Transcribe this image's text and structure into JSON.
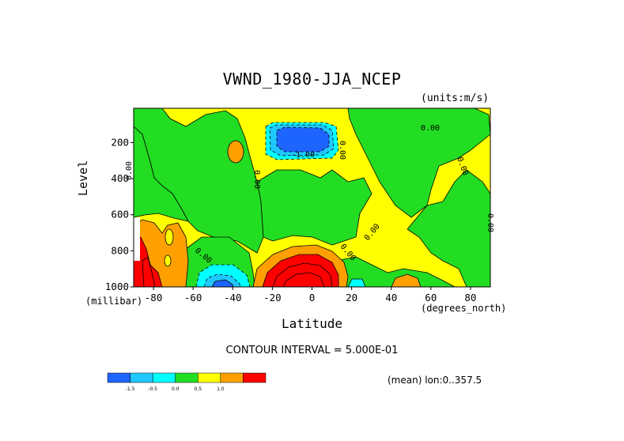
{
  "chart_data": {
    "type": "heatmap",
    "subtype": "filled-contour",
    "title": "VWND_1980-JJA_NCEP",
    "units": "(units:m/s)",
    "xlabel": "Latitude",
    "x_units": "(degrees_north)",
    "ylabel": "Level",
    "y_units": "(millibar)",
    "xlim": [
      -90,
      90
    ],
    "ylim": [
      1000,
      10
    ],
    "x_ticks": [
      -80,
      -60,
      -40,
      -20,
      0,
      20,
      40,
      60,
      80
    ],
    "y_ticks": [
      200,
      400,
      600,
      800,
      1000
    ],
    "contour_interval_text": "CONTOUR INTERVAL = 5.000E-01",
    "mean_text": "(mean) lon:0..357.5",
    "colorbar": {
      "levels": [
        "-1.5",
        "-0.5",
        "0.0",
        "0.5",
        "1.0"
      ],
      "bins": [
        {
          "range": "< -1.5",
          "color": "#1e64ff"
        },
        {
          "range": "-1.5 to -1.0",
          "color": "#1ec8ff"
        },
        {
          "range": "-1.0 to -0.5",
          "color": "#00ffff"
        },
        {
          "range": "-0.5 to 0.0",
          "color": "#22dd22"
        },
        {
          "range": "0.0 to 0.5",
          "color": "#ffff00"
        },
        {
          "range": "0.5 to 1.0",
          "color": "#ffa000"
        },
        {
          "range": "> 1.0",
          "color": "#ff0000"
        }
      ]
    },
    "features": [
      {
        "name": "upper-tropospheric negative core",
        "lat": [
          -25,
          10
        ],
        "level": [
          120,
          280
        ],
        "min": -2.0
      },
      {
        "name": "near-surface positive maximum",
        "lat": [
          -28,
          20
        ],
        "level": [
          780,
          1000
        ],
        "max": 3.0
      },
      {
        "name": "southern surface negative",
        "lat": [
          -62,
          -32
        ],
        "level": [
          820,
          1000
        ],
        "min": -1.5
      },
      {
        "name": "antarctic positive",
        "lat": [
          -90,
          -62
        ],
        "level": [
          620,
          1000
        ],
        "max": 2.0
      }
    ],
    "contour_labels": [
      "0.00",
      "0.00",
      "0.00",
      "0.00",
      "0.00",
      "0.00",
      "0.00",
      "0.00",
      "0.00",
      "-1.00"
    ]
  }
}
